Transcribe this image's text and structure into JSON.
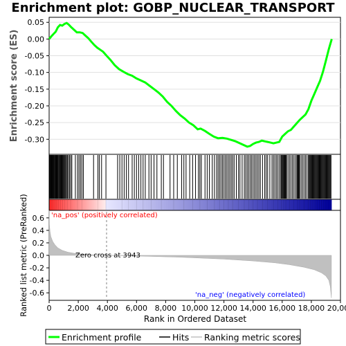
{
  "chart_data": {
    "type": "line",
    "title": "Enrichment plot: GOBP_NUCLEAR_TRANSPORT",
    "xlabel": "Rank in Ordered Dataset",
    "es_panel": {
      "ylabel": "Enrichment score (ES)",
      "ylim": [
        -0.345,
        0.065
      ],
      "yticks": [
        0.05,
        0.0,
        -0.05,
        -0.1,
        -0.15,
        -0.2,
        -0.25,
        -0.3
      ],
      "ytick_labels": [
        "0.05",
        "0.00",
        "-0.05",
        "-0.10",
        "-0.15",
        "-0.20",
        "-0.25",
        "-0.30"
      ],
      "series": [
        {
          "name": "Enrichment profile",
          "color": "#00ff00",
          "x": [
            0,
            150,
            300,
            450,
            600,
            750,
            900,
            1050,
            1200,
            1350,
            1500,
            1700,
            1900,
            2100,
            2300,
            2500,
            2700,
            2900,
            3100,
            3300,
            3500,
            3700,
            3943,
            4200,
            4500,
            4800,
            5100,
            5400,
            5700,
            6000,
            6300,
            6600,
            6900,
            7200,
            7500,
            7800,
            8100,
            8400,
            8700,
            9000,
            9300,
            9600,
            9900,
            10200,
            10400,
            10700,
            11000,
            11300,
            11600,
            11900,
            12200,
            12500,
            12800,
            13100,
            13400,
            13600,
            13800,
            14000,
            14200,
            14400,
            14600,
            14800,
            15000,
            15200,
            15400,
            15600,
            15800,
            16000,
            16200,
            16400,
            16600,
            16800,
            17000,
            17200,
            17400,
            17600,
            17800,
            18000,
            18200,
            18400,
            18600,
            18800,
            19000,
            19200,
            19400
          ],
          "y": [
            0.0,
            0.008,
            0.015,
            0.022,
            0.035,
            0.042,
            0.04,
            0.045,
            0.048,
            0.043,
            0.036,
            0.028,
            0.02,
            0.02,
            0.018,
            0.01,
            0.002,
            -0.008,
            -0.018,
            -0.026,
            -0.032,
            -0.038,
            -0.05,
            -0.062,
            -0.078,
            -0.09,
            -0.098,
            -0.105,
            -0.11,
            -0.118,
            -0.124,
            -0.13,
            -0.14,
            -0.15,
            -0.16,
            -0.172,
            -0.188,
            -0.2,
            -0.215,
            -0.228,
            -0.238,
            -0.25,
            -0.258,
            -0.27,
            -0.268,
            -0.275,
            -0.284,
            -0.292,
            -0.297,
            -0.296,
            -0.298,
            -0.302,
            -0.306,
            -0.312,
            -0.318,
            -0.322,
            -0.32,
            -0.314,
            -0.31,
            -0.308,
            -0.304,
            -0.306,
            -0.308,
            -0.31,
            -0.312,
            -0.31,
            -0.308,
            -0.292,
            -0.284,
            -0.276,
            -0.272,
            -0.262,
            -0.252,
            -0.242,
            -0.234,
            -0.226,
            -0.21,
            -0.185,
            -0.165,
            -0.145,
            -0.125,
            -0.098,
            -0.065,
            -0.03,
            0.0
          ]
        }
      ]
    },
    "hits_panel": {
      "legend_name": "Hits",
      "positions": [
        30,
        70,
        110,
        150,
        190,
        230,
        270,
        310,
        350,
        400,
        440,
        480,
        520,
        560,
        600,
        650,
        700,
        740,
        780,
        830,
        880,
        930,
        980,
        1030,
        1080,
        1130,
        1190,
        1250,
        1320,
        1400,
        1480,
        1560,
        1800,
        1950,
        2050,
        2150,
        2250,
        2350,
        3050,
        3350,
        3450,
        3600,
        3900,
        4700,
        4850,
        5000,
        5150,
        5300,
        5450,
        5700,
        5850,
        6000,
        6150,
        6300,
        6450,
        6600,
        6850,
        7000,
        7200,
        7400,
        7700,
        7850,
        8300,
        8550,
        8800,
        9100,
        9250,
        9400,
        9650,
        9850,
        10050,
        10250,
        10350,
        10450,
        10700,
        10850,
        11000,
        11200,
        11350,
        11500,
        11600,
        11700,
        11800,
        11900,
        12000,
        12100,
        12200,
        12300,
        12400,
        12500,
        12600,
        12700,
        12850,
        13000,
        13100,
        13250,
        13400,
        13500,
        13600,
        13700,
        13800,
        13900,
        14000,
        14100,
        14200,
        14300,
        14400,
        14500,
        14650,
        14800,
        14900,
        15000,
        15150,
        15300,
        15400,
        15500,
        15600,
        15700,
        15800,
        15900,
        15950,
        16000,
        16050,
        16100,
        16150,
        16200,
        16250,
        16300,
        16400,
        16500,
        16600,
        16700,
        16800,
        16900,
        17000,
        17050,
        17100,
        17150,
        17200,
        17300,
        17400,
        17500,
        17600,
        17700,
        17800,
        17850,
        17900,
        17950,
        18000,
        18050,
        18100,
        18150,
        18200,
        18250,
        18300,
        18350,
        18400,
        18450,
        18500,
        18550,
        18600,
        18650,
        18700,
        18750,
        18800,
        18850,
        18900,
        18950,
        19000,
        19050,
        19100,
        19150,
        19200,
        19250,
        19300,
        19350
      ]
    },
    "metric_panel": {
      "ylabel": "Ranked list metric (PreRanked)",
      "legend_name": "Ranking metric scores",
      "ylim": [
        -0.72,
        0.72
      ],
      "yticks": [
        0.6,
        0.4,
        0.2,
        0.0,
        -0.2,
        -0.4,
        -0.6
      ],
      "ytick_labels": [
        "0.6",
        "0.4",
        "0.2",
        "0.0",
        "-0.2",
        "-0.4",
        "-0.6"
      ],
      "x": [
        0,
        20,
        60,
        120,
        250,
        400,
        600,
        900,
        1300,
        1800,
        2500,
        3200,
        3943,
        6000,
        9000,
        12000,
        14000,
        15500,
        16500,
        17500,
        18200,
        18700,
        19000,
        19200,
        19300,
        19380
      ],
      "y": [
        0.72,
        0.5,
        0.38,
        0.3,
        0.22,
        0.17,
        0.12,
        0.08,
        0.05,
        0.03,
        0.015,
        0.006,
        0.0,
        -0.01,
        -0.03,
        -0.06,
        -0.09,
        -0.12,
        -0.15,
        -0.19,
        -0.23,
        -0.28,
        -0.33,
        -0.4,
        -0.5,
        -0.68
      ],
      "zero_cross_label": "Zero cross at 3943",
      "zero_cross_rank": 3943,
      "pos_label": "'na_pos' (positively correlated)",
      "neg_label": "'na_neg' (negatively correlated)"
    },
    "xlim": [
      0,
      20000
    ],
    "xticks": [
      0,
      2000,
      4000,
      6000,
      8000,
      10000,
      12000,
      14000,
      16000,
      18000,
      20000
    ],
    "xtick_labels": [
      "0",
      "2,000",
      "4,000",
      "6,000",
      "8,000",
      "10,000",
      "12,000",
      "14,000",
      "16,000",
      "18,000",
      "20,000"
    ],
    "n_ranked": 19400,
    "legend": {
      "items": [
        "Enrichment profile",
        "Hits",
        "Ranking metric scores"
      ],
      "placement": "bottom"
    },
    "colors": {
      "es_line": "#00ff00",
      "hit": "#000000",
      "metric_fill": "#c0c0c0",
      "pos_text": "#ff0000",
      "neg_text": "#0000ff",
      "zero_line": "#808080"
    }
  }
}
